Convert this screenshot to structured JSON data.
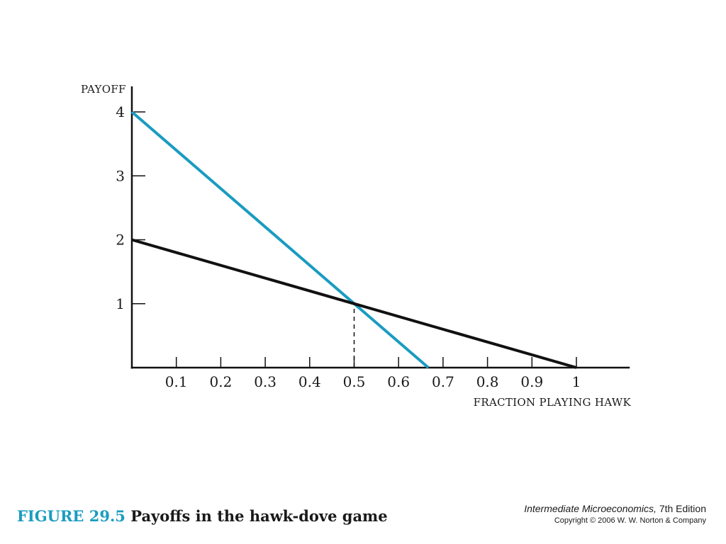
{
  "chart_data": {
    "type": "line",
    "xlabel": "FRACTION PLAYING HAWK",
    "ylabel": "PAYOFF",
    "xlim": [
      0,
      1.12
    ],
    "ylim": [
      0,
      4.4
    ],
    "x_ticks": [
      "0.1",
      "0.2",
      "0.3",
      "0.4",
      "0.5",
      "0.6",
      "0.7",
      "0.8",
      "0.9",
      "1"
    ],
    "y_ticks": [
      "1",
      "2",
      "3",
      "4"
    ],
    "grid": false,
    "series": [
      {
        "color": "#1a9cc0",
        "points": [
          [
            0,
            4
          ],
          [
            0.667,
            0
          ]
        ]
      },
      {
        "color": "#111111",
        "points": [
          [
            0,
            2
          ],
          [
            1,
            0
          ]
        ]
      }
    ],
    "annotations": [
      {
        "type": "dashed-vertical",
        "x": 0.5,
        "y_from": 0,
        "y_to": 1
      }
    ]
  },
  "caption": {
    "figure_number": "FIGURE 29.5",
    "title": "Payoffs in the hawk-dove game"
  },
  "credit": {
    "book_title": "Intermediate Microeconomics,",
    "edition": " 7th Edition",
    "copyright": "Copyright © 2006 W. W. Norton & Company"
  }
}
